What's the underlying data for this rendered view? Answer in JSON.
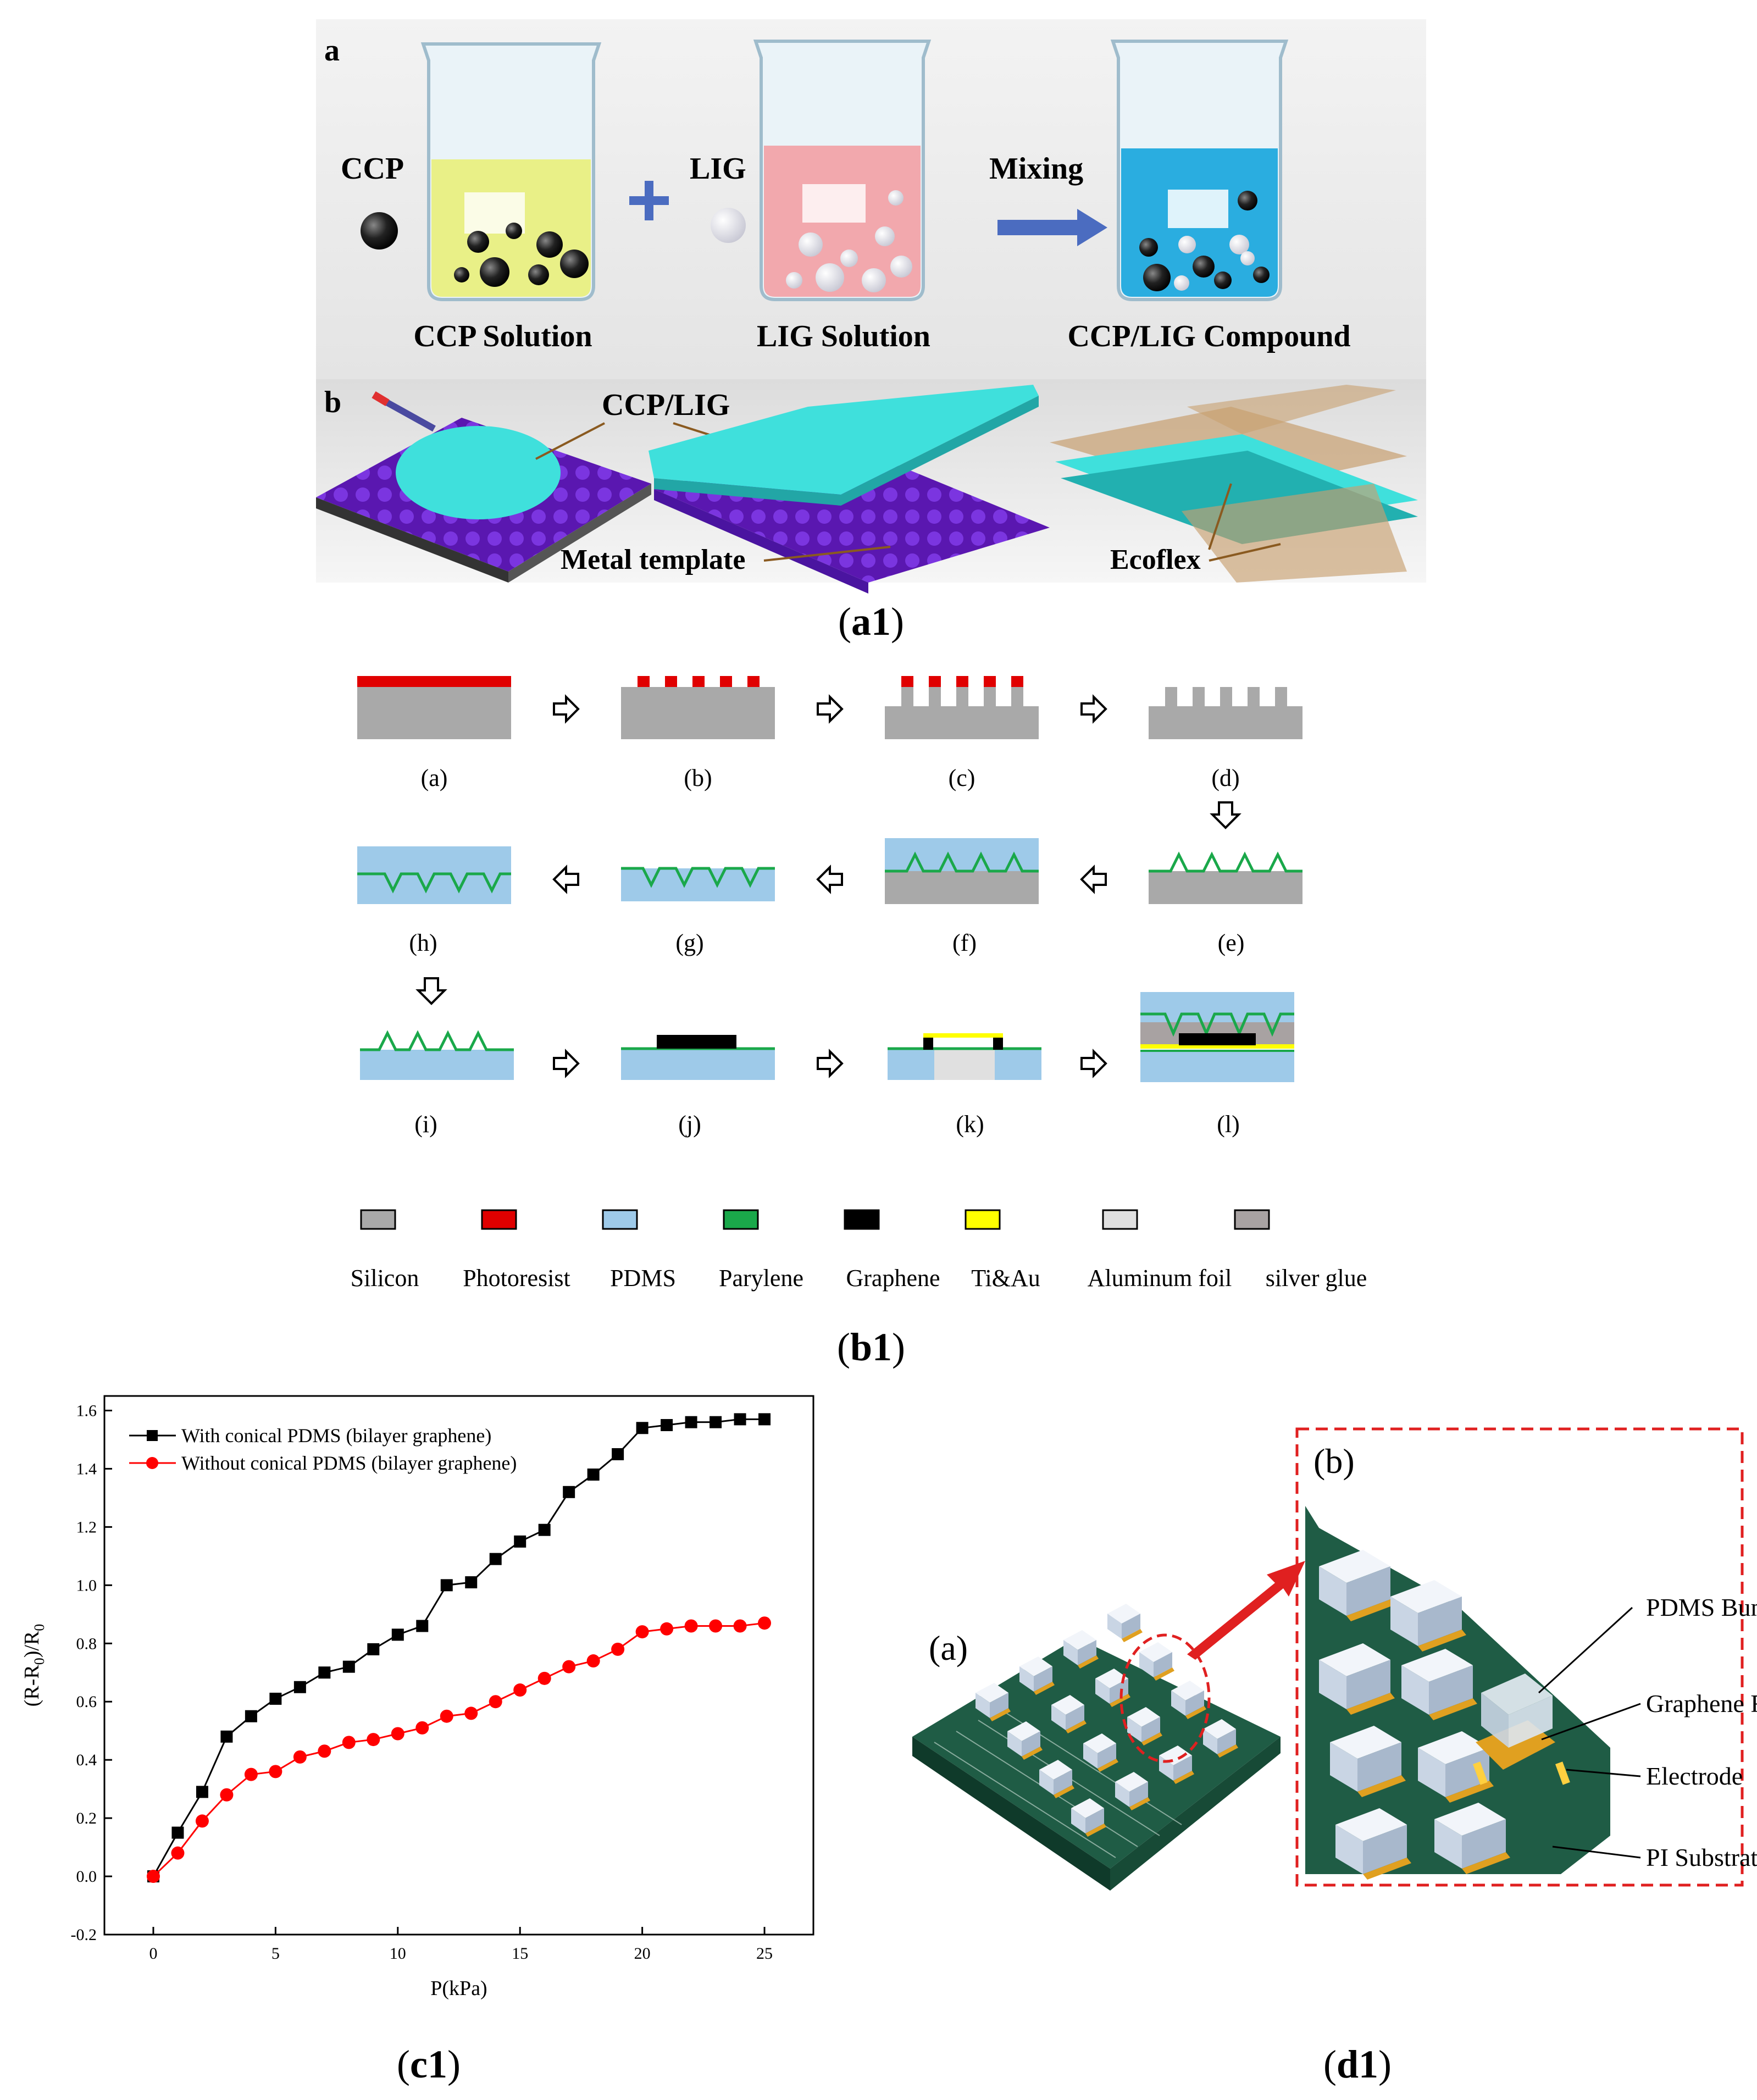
{
  "panel_a1": {
    "row_a_letter": "a",
    "row_b_letter": "b",
    "ccp_label": "CCP",
    "lig_label": "LIG",
    "mixing_label": "Mixing",
    "beaker1_caption": "CCP Solution",
    "beaker2_caption": "LIG Solution",
    "beaker3_caption": "CCP/LIG Compound",
    "ccp_lig_label": "CCP/LIG",
    "metal_template_label": "Metal template",
    "ecoflex_label": "Ecoflex",
    "caption_bold": "a1",
    "colors": {
      "ccp_solution": "#e9ef7a",
      "lig_solution": "#f2a2a6",
      "compound": "#20a9de",
      "template": "#6a1fc4",
      "film": "#3fe0dc",
      "arrow": "#4b6cc0"
    }
  },
  "panel_b1": {
    "steps": [
      {
        "label": "(a)"
      },
      {
        "label": "(b)"
      },
      {
        "label": "(c)"
      },
      {
        "label": "(d)"
      },
      {
        "label": "(h)"
      },
      {
        "label": "(g)"
      },
      {
        "label": "(f)"
      },
      {
        "label": "(e)"
      },
      {
        "label": "(i)"
      },
      {
        "label": "(j)"
      },
      {
        "label": "(k)"
      },
      {
        "label": "(l)"
      }
    ],
    "legend": [
      {
        "name": "Silicon",
        "color": "#a9a9a9"
      },
      {
        "name": "Photoresist",
        "color": "#e00000"
      },
      {
        "name": "PDMS",
        "color": "#9ecae9"
      },
      {
        "name": "Parylene",
        "color": "#1aa84a"
      },
      {
        "name": "Graphene",
        "color": "#000000"
      },
      {
        "name": "Ti&Au",
        "color": "#ffff00"
      },
      {
        "name": "Aluminum foil",
        "color": "#e0e0e0"
      },
      {
        "name": "silver glue",
        "color": "#a8a2a2"
      }
    ],
    "caption_bold": "b1"
  },
  "chart_data": {
    "type": "line",
    "xlabel": "P(kPa)",
    "ylabel": "(R-R0)/R0",
    "xlim": [
      -2,
      27
    ],
    "ylim": [
      -0.2,
      1.65
    ],
    "xticks": [
      0,
      5,
      10,
      15,
      20,
      25
    ],
    "yticks": [
      -0.2,
      0.0,
      0.2,
      0.4,
      0.6,
      0.8,
      1.0,
      1.2,
      1.4,
      1.6
    ],
    "legend_position": "top-left",
    "series": [
      {
        "name": "With conical PDMS (bilayer graphene)",
        "color": "#000000",
        "marker": "square",
        "x": [
          0,
          1,
          2,
          3,
          4,
          5,
          6,
          7,
          8,
          9,
          10,
          11,
          12,
          13,
          14,
          15,
          16,
          17,
          18,
          19,
          20,
          21,
          22,
          23,
          24,
          25
        ],
        "y": [
          0.0,
          0.15,
          0.29,
          0.48,
          0.55,
          0.61,
          0.65,
          0.7,
          0.72,
          0.78,
          0.83,
          0.86,
          1.0,
          1.01,
          1.09,
          1.15,
          1.19,
          1.32,
          1.38,
          1.45,
          1.54,
          1.55,
          1.56,
          1.56,
          1.57,
          1.57
        ]
      },
      {
        "name": "Without conical PDMS (bilayer graphene)",
        "color": "#ff0000",
        "marker": "circle",
        "x": [
          0,
          1,
          2,
          3,
          4,
          5,
          6,
          7,
          8,
          9,
          10,
          11,
          12,
          13,
          14,
          15,
          16,
          17,
          18,
          19,
          20,
          21,
          22,
          23,
          24,
          25
        ],
        "y": [
          0.0,
          0.08,
          0.19,
          0.28,
          0.35,
          0.36,
          0.41,
          0.43,
          0.46,
          0.47,
          0.49,
          0.51,
          0.55,
          0.56,
          0.6,
          0.64,
          0.68,
          0.72,
          0.74,
          0.78,
          0.84,
          0.85,
          0.86,
          0.86,
          0.86,
          0.87
        ]
      }
    ]
  },
  "panel_c1": {
    "caption_bold": "c1"
  },
  "panel_d1": {
    "label_a": "(a)",
    "label_b": "(b)",
    "pdms_bump_label": "PDMS Bump",
    "graphene_film_label": "Graphene Film",
    "electrode_label": "Electrode",
    "pi_substrate_label": "PI Substrate",
    "caption_bold": "d1",
    "colors": {
      "substrate": "#1f5c45",
      "bump": "#e8eef6",
      "electrode": "#e0a020",
      "dash": "#e02020"
    }
  }
}
